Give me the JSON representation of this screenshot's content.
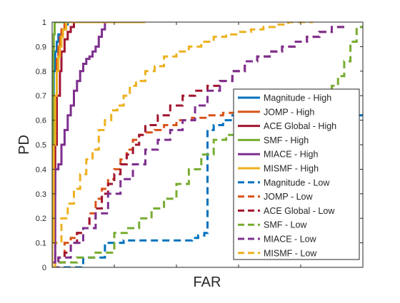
{
  "chart_data": {
    "type": "line",
    "title": "",
    "xlabel": "FAR",
    "ylabel": "PD",
    "xlim": [
      0,
      1
    ],
    "ylim": [
      0,
      1
    ],
    "yticks": [
      "0",
      "0.1",
      "0.2",
      "0.3",
      "0.4",
      "0.5",
      "0.6",
      "0.7",
      "0.8",
      "0.9",
      "1"
    ],
    "xtick_count": 5,
    "x_tick_labels_shown": false,
    "grid": false,
    "legend": "inside-right",
    "series": [
      {
        "name": "Magnitude - High",
        "color": "#0072BD",
        "style": "solid",
        "x": [
          0.0,
          0.0,
          0.005,
          0.005,
          0.01,
          0.01,
          0.015,
          0.015,
          0.02,
          0.02,
          0.03,
          0.03,
          0.04,
          0.04,
          0.05,
          0.05,
          0.3
        ],
        "y": [
          0.0,
          0.5,
          0.5,
          0.8,
          0.8,
          0.88,
          0.88,
          0.92,
          0.92,
          0.95,
          0.95,
          0.97,
          0.97,
          0.99,
          0.99,
          1.0,
          1.0
        ]
      },
      {
        "name": "JOMP - High",
        "color": "#D95319",
        "style": "solid",
        "x": [
          0.0,
          0.0,
          0.008,
          0.008,
          0.015,
          0.015,
          0.02,
          0.02,
          0.025,
          0.025,
          0.03,
          0.03,
          0.04,
          0.04,
          0.3
        ],
        "y": [
          0.0,
          0.2,
          0.2,
          0.7,
          0.7,
          0.85,
          0.85,
          0.9,
          0.9,
          0.94,
          0.94,
          0.97,
          0.97,
          1.0,
          1.0
        ]
      },
      {
        "name": "ACE Global - High",
        "color": "#A2142F",
        "style": "solid",
        "x": [
          0.0,
          0.0,
          0.01,
          0.01,
          0.015,
          0.015,
          0.025,
          0.025,
          0.03,
          0.03,
          0.04,
          0.04,
          0.05,
          0.05,
          0.06,
          0.06,
          0.07,
          0.07,
          0.3
        ],
        "y": [
          0.0,
          0.3,
          0.3,
          0.5,
          0.5,
          0.7,
          0.7,
          0.8,
          0.8,
          0.88,
          0.88,
          0.93,
          0.93,
          0.96,
          0.96,
          0.98,
          0.98,
          1.0,
          1.0
        ]
      },
      {
        "name": "SMF - High",
        "color": "#77AC30",
        "style": "solid",
        "x": [
          0.0,
          0.0,
          0.003,
          0.003,
          0.005,
          0.005,
          0.008,
          0.008,
          0.3
        ],
        "y": [
          0.0,
          0.5,
          0.5,
          0.88,
          0.88,
          0.95,
          0.95,
          1.0,
          1.0
        ]
      },
      {
        "name": "MIACE - High",
        "color": "#7E2F8E",
        "style": "solid",
        "x": [
          0.0,
          0.0,
          0.01,
          0.01,
          0.02,
          0.02,
          0.03,
          0.03,
          0.04,
          0.04,
          0.05,
          0.05,
          0.06,
          0.06,
          0.07,
          0.07,
          0.08,
          0.08,
          0.09,
          0.09,
          0.1,
          0.1,
          0.11,
          0.11,
          0.12,
          0.12,
          0.13,
          0.13,
          0.14,
          0.14,
          0.15,
          0.15,
          0.16,
          0.16,
          0.17,
          0.17,
          0.3
        ],
        "y": [
          0.0,
          0.02,
          0.02,
          0.4,
          0.4,
          0.42,
          0.42,
          0.5,
          0.5,
          0.56,
          0.56,
          0.62,
          0.62,
          0.66,
          0.66,
          0.72,
          0.72,
          0.76,
          0.76,
          0.8,
          0.8,
          0.83,
          0.83,
          0.85,
          0.85,
          0.86,
          0.86,
          0.88,
          0.88,
          0.9,
          0.9,
          0.94,
          0.94,
          0.97,
          0.97,
          1.0,
          1.0
        ]
      },
      {
        "name": "MISMF - High",
        "color": "#EDB120",
        "style": "solid",
        "x": [
          0.0,
          0.0,
          0.005,
          0.005,
          0.01,
          0.01,
          0.015,
          0.015,
          0.02,
          0.02,
          0.025,
          0.025,
          0.03,
          0.03,
          0.035,
          0.035,
          0.045,
          0.045,
          0.3
        ],
        "y": [
          0.0,
          0.1,
          0.1,
          0.5,
          0.5,
          0.7,
          0.7,
          0.8,
          0.8,
          0.86,
          0.86,
          0.9,
          0.9,
          0.94,
          0.94,
          0.97,
          0.97,
          1.0,
          1.0
        ]
      },
      {
        "name": "Magnitude - Low",
        "color": "#0072BD",
        "style": "dashed",
        "x": [
          0.0,
          0.1,
          0.1,
          0.17,
          0.17,
          0.23,
          0.23,
          0.45,
          0.45,
          0.47,
          0.47,
          0.49,
          0.49,
          0.5,
          0.5,
          0.52,
          0.52,
          0.55,
          0.55,
          0.58,
          0.58,
          1.0
        ],
        "y": [
          0.0,
          0.0,
          0.04,
          0.04,
          0.1,
          0.1,
          0.11,
          0.11,
          0.12,
          0.12,
          0.13,
          0.13,
          0.14,
          0.14,
          0.56,
          0.56,
          0.58,
          0.58,
          0.6,
          0.6,
          0.62,
          0.62
        ]
      },
      {
        "name": "JOMP - Low",
        "color": "#D95319",
        "style": "dashed",
        "x": [
          0.0,
          0.02,
          0.02,
          0.04,
          0.04,
          0.06,
          0.06,
          0.08,
          0.08,
          0.1,
          0.1,
          0.12,
          0.12,
          0.14,
          0.14,
          0.16,
          0.16,
          0.18,
          0.18,
          0.2,
          0.2,
          0.22,
          0.22,
          0.24,
          0.24,
          0.26,
          0.26,
          0.28,
          0.28,
          0.3,
          0.3,
          0.33,
          0.33,
          0.36,
          0.36,
          0.4,
          0.4,
          0.45,
          0.45,
          0.5,
          0.5,
          0.55,
          0.55,
          0.6,
          0.6,
          0.65,
          0.65,
          0.7,
          0.7,
          0.72
        ],
        "y": [
          0.0,
          0.0,
          0.04,
          0.04,
          0.1,
          0.1,
          0.12,
          0.12,
          0.14,
          0.14,
          0.16,
          0.16,
          0.22,
          0.22,
          0.28,
          0.28,
          0.32,
          0.32,
          0.36,
          0.36,
          0.4,
          0.4,
          0.44,
          0.44,
          0.48,
          0.48,
          0.52,
          0.52,
          0.54,
          0.54,
          0.55,
          0.55,
          0.56,
          0.56,
          0.58,
          0.58,
          0.6,
          0.6,
          0.61,
          0.61,
          0.62,
          0.62,
          0.63,
          0.63,
          0.65,
          0.65,
          0.66,
          0.66,
          0.68,
          0.68
        ]
      },
      {
        "name": "ACE Global - Low",
        "color": "#A2142F",
        "style": "dashed",
        "x": [
          0.0,
          0.02,
          0.02,
          0.04,
          0.04,
          0.06,
          0.06,
          0.08,
          0.08,
          0.1,
          0.1,
          0.12,
          0.12,
          0.14,
          0.14,
          0.16,
          0.16,
          0.18,
          0.18,
          0.2,
          0.2,
          0.22,
          0.22,
          0.24,
          0.24,
          0.26,
          0.26,
          0.28,
          0.28,
          0.3,
          0.3,
          0.34,
          0.34,
          0.38,
          0.38,
          0.42,
          0.42,
          0.46,
          0.46,
          0.5,
          0.5,
          0.54,
          0.54,
          0.58,
          0.58,
          0.62,
          0.62,
          0.66,
          0.66,
          0.7,
          0.7,
          0.74,
          0.74,
          0.78,
          0.78,
          0.82,
          0.82,
          0.86,
          0.86,
          0.9,
          0.9,
          0.94
        ],
        "y": [
          0.0,
          0.0,
          0.02,
          0.02,
          0.06,
          0.06,
          0.1,
          0.1,
          0.14,
          0.14,
          0.16,
          0.16,
          0.2,
          0.2,
          0.24,
          0.24,
          0.3,
          0.3,
          0.34,
          0.34,
          0.38,
          0.38,
          0.42,
          0.42,
          0.46,
          0.46,
          0.5,
          0.5,
          0.54,
          0.54,
          0.58,
          0.58,
          0.62,
          0.62,
          0.66,
          0.66,
          0.7,
          0.7,
          0.72,
          0.72,
          0.74,
          0.74,
          0.76,
          0.76,
          0.8,
          0.8,
          0.84,
          0.84,
          0.86,
          0.86,
          0.88,
          0.88,
          0.9,
          0.9,
          0.92,
          0.92,
          0.94,
          0.94,
          0.96,
          0.96,
          0.98,
          0.98
        ]
      },
      {
        "name": "SMF - Low",
        "color": "#77AC30",
        "style": "dashed",
        "x": [
          0.0,
          0.02,
          0.02,
          0.08,
          0.08,
          0.14,
          0.14,
          0.2,
          0.2,
          0.24,
          0.24,
          0.28,
          0.28,
          0.32,
          0.32,
          0.36,
          0.36,
          0.4,
          0.4,
          0.44,
          0.44,
          0.48,
          0.48,
          0.52,
          0.52,
          0.56,
          0.56,
          0.6,
          0.6,
          0.64,
          0.64,
          0.68,
          0.68,
          0.72,
          0.72,
          0.76,
          0.76,
          0.8,
          0.8,
          0.84,
          0.84,
          0.88,
          0.88,
          0.9,
          0.9,
          0.92,
          0.92,
          0.94,
          0.94,
          0.96,
          0.96,
          0.98,
          0.98,
          1.0
        ],
        "y": [
          0.0,
          0.0,
          0.02,
          0.02,
          0.04,
          0.04,
          0.06,
          0.06,
          0.14,
          0.14,
          0.16,
          0.16,
          0.2,
          0.2,
          0.24,
          0.24,
          0.28,
          0.28,
          0.34,
          0.34,
          0.4,
          0.4,
          0.46,
          0.46,
          0.52,
          0.52,
          0.54,
          0.54,
          0.56,
          0.56,
          0.58,
          0.58,
          0.6,
          0.6,
          0.62,
          0.62,
          0.64,
          0.64,
          0.66,
          0.66,
          0.68,
          0.68,
          0.7,
          0.7,
          0.74,
          0.74,
          0.78,
          0.78,
          0.84,
          0.84,
          0.92,
          0.92,
          0.98,
          0.98
        ]
      },
      {
        "name": "MIACE - Low",
        "color": "#7E2F8E",
        "style": "dashed",
        "x": [
          0.0,
          0.02,
          0.02,
          0.06,
          0.06,
          0.1,
          0.1,
          0.14,
          0.14,
          0.18,
          0.18,
          0.22,
          0.22,
          0.26,
          0.26,
          0.3,
          0.3,
          0.34,
          0.34,
          0.38,
          0.38,
          0.42,
          0.42,
          0.46,
          0.46,
          0.5,
          0.5,
          0.54,
          0.54,
          0.58,
          0.58,
          0.62,
          0.62,
          0.66,
          0.66,
          0.7,
          0.7,
          0.74,
          0.74,
          0.78,
          0.78,
          0.82,
          0.82,
          0.86,
          0.86,
          0.9,
          0.9,
          0.94
        ],
        "y": [
          0.0,
          0.0,
          0.04,
          0.04,
          0.1,
          0.1,
          0.16,
          0.16,
          0.22,
          0.22,
          0.3,
          0.3,
          0.36,
          0.36,
          0.42,
          0.42,
          0.48,
          0.48,
          0.52,
          0.52,
          0.56,
          0.56,
          0.6,
          0.6,
          0.66,
          0.66,
          0.72,
          0.72,
          0.76,
          0.76,
          0.8,
          0.8,
          0.84,
          0.84,
          0.86,
          0.86,
          0.88,
          0.88,
          0.9,
          0.9,
          0.92,
          0.92,
          0.94,
          0.94,
          0.96,
          0.96,
          0.98,
          0.98
        ]
      },
      {
        "name": "MISMF - Low",
        "color": "#EDB120",
        "style": "dashed",
        "x": [
          0.0,
          0.01,
          0.01,
          0.03,
          0.03,
          0.05,
          0.05,
          0.07,
          0.07,
          0.09,
          0.09,
          0.11,
          0.11,
          0.13,
          0.13,
          0.15,
          0.15,
          0.17,
          0.17,
          0.19,
          0.19,
          0.21,
          0.21,
          0.23,
          0.23,
          0.25,
          0.25,
          0.27,
          0.27,
          0.3,
          0.3,
          0.33,
          0.33,
          0.36,
          0.36,
          0.4,
          0.4,
          0.44,
          0.44,
          0.48,
          0.48,
          0.52,
          0.52,
          0.56,
          0.56,
          0.6,
          0.6,
          0.64,
          0.64,
          0.68,
          0.68,
          0.72,
          0.72,
          0.76,
          0.76,
          0.8,
          0.8,
          0.84
        ],
        "y": [
          0.0,
          0.0,
          0.1,
          0.1,
          0.2,
          0.2,
          0.26,
          0.26,
          0.32,
          0.32,
          0.38,
          0.38,
          0.44,
          0.44,
          0.48,
          0.48,
          0.56,
          0.56,
          0.6,
          0.6,
          0.64,
          0.64,
          0.66,
          0.66,
          0.7,
          0.7,
          0.74,
          0.74,
          0.76,
          0.76,
          0.8,
          0.8,
          0.82,
          0.82,
          0.86,
          0.86,
          0.88,
          0.88,
          0.9,
          0.9,
          0.92,
          0.92,
          0.94,
          0.94,
          0.95,
          0.95,
          0.96,
          0.96,
          0.97,
          0.97,
          0.98,
          0.98,
          0.99,
          0.99,
          1.0,
          1.0,
          1.0,
          1.0
        ]
      }
    ]
  }
}
